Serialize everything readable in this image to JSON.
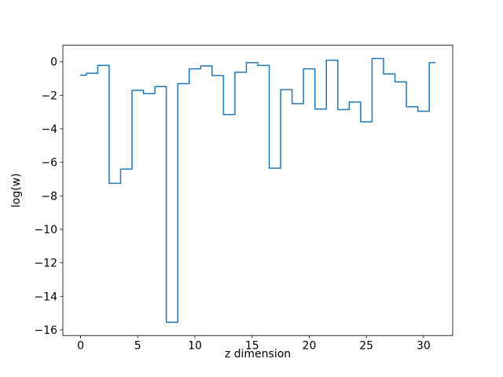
{
  "figure": {
    "background": "#ffffff"
  },
  "chart_data": {
    "type": "line",
    "drawstyle": "steps-mid",
    "title": "",
    "xlabel": "z dimension",
    "ylabel": "log(w)",
    "x": [
      0,
      1,
      2,
      3,
      4,
      5,
      6,
      7,
      8,
      9,
      10,
      11,
      12,
      13,
      14,
      15,
      16,
      17,
      18,
      19,
      20,
      21,
      22,
      23,
      24,
      25,
      26,
      27,
      28,
      29,
      30,
      31
    ],
    "y": [
      -0.8,
      -0.68,
      -0.21,
      -7.25,
      -6.4,
      -1.7,
      -1.9,
      -1.48,
      -15.55,
      -1.3,
      -0.42,
      -0.25,
      -0.82,
      -3.15,
      -0.62,
      -0.05,
      -0.22,
      -6.35,
      -1.66,
      -2.5,
      -0.42,
      -2.82,
      0.1,
      -2.85,
      -2.4,
      -3.58,
      0.2,
      -0.72,
      -1.2,
      -2.68,
      -2.95,
      -0.05
    ],
    "xlim": [
      -1.55,
      32.55
    ],
    "ylim": [
      -16.34,
      0.99
    ],
    "xticks": [
      0,
      5,
      10,
      15,
      20,
      25,
      30
    ],
    "xtick_labels": [
      "0",
      "5",
      "10",
      "15",
      "20",
      "25",
      "30"
    ],
    "yticks": [
      0,
      -2,
      -4,
      -6,
      -8,
      -10,
      -12,
      -14,
      -16
    ],
    "ytick_labels": [
      "0",
      "−2",
      "−4",
      "−6",
      "−8",
      "−10",
      "−12",
      "−14",
      "−16"
    ],
    "line_color": "#1f77b4",
    "spine_color": "#000000",
    "grid": false,
    "legend": null
  }
}
